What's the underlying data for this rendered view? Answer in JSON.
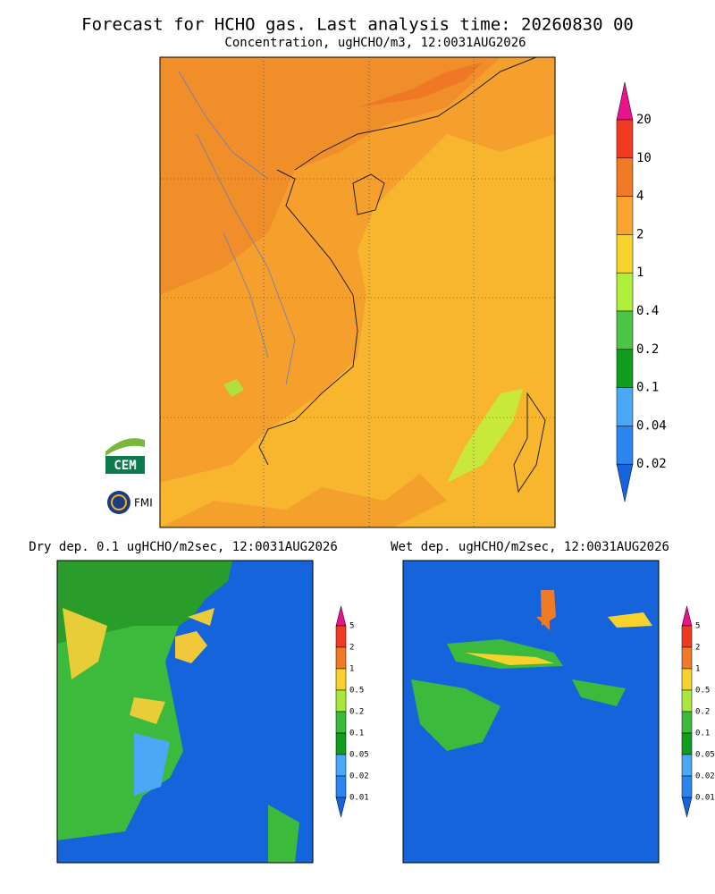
{
  "header": {
    "title": "Forecast for HCHO gas. Last analysis time: 20260830 00",
    "subtitle": "Concentration, ugHCHO/m3, 12:0031AUG2026"
  },
  "main_colorbar": {
    "labels": [
      "20",
      "10",
      "4",
      "2",
      "1",
      "0.4",
      "0.2",
      "0.1",
      "0.04",
      "0.02"
    ],
    "colors": [
      "#e8128c",
      "#f23a22",
      "#f07a26",
      "#f7a52e",
      "#f8d22c",
      "#b0ee3c",
      "#4cc444",
      "#109c1c",
      "#4aa8f6",
      "#2a86ee",
      "#1664dc"
    ]
  },
  "dry_panel": {
    "title": "Dry dep. 0.1 ugHCHO/m2sec, 12:0031AUG2026",
    "colorbar": {
      "labels": [
        "5",
        "2",
        "1",
        "0.5",
        "0.2",
        "0.1",
        "0.05",
        "0.02",
        "0.01"
      ],
      "colors": [
        "#e8128c",
        "#f23a22",
        "#f07a26",
        "#f8d22c",
        "#a8e83c",
        "#3cba3c",
        "#109c1c",
        "#4aa8f6",
        "#2a86ee",
        "#1664dc"
      ]
    }
  },
  "wet_panel": {
    "title": "Wet dep. ugHCHO/m2sec, 12:0031AUG2026",
    "colorbar": {
      "labels": [
        "5",
        "2",
        "1",
        "0.5",
        "0.2",
        "0.1",
        "0.05",
        "0.02",
        "0.01"
      ],
      "colors": [
        "#e8128c",
        "#f23a22",
        "#f07a26",
        "#f8d22c",
        "#a8e83c",
        "#3cba3c",
        "#109c1c",
        "#4aa8f6",
        "#2a86ee",
        "#1664dc"
      ]
    }
  },
  "logos": {
    "cem": "CEM",
    "fmi": "FMI"
  }
}
